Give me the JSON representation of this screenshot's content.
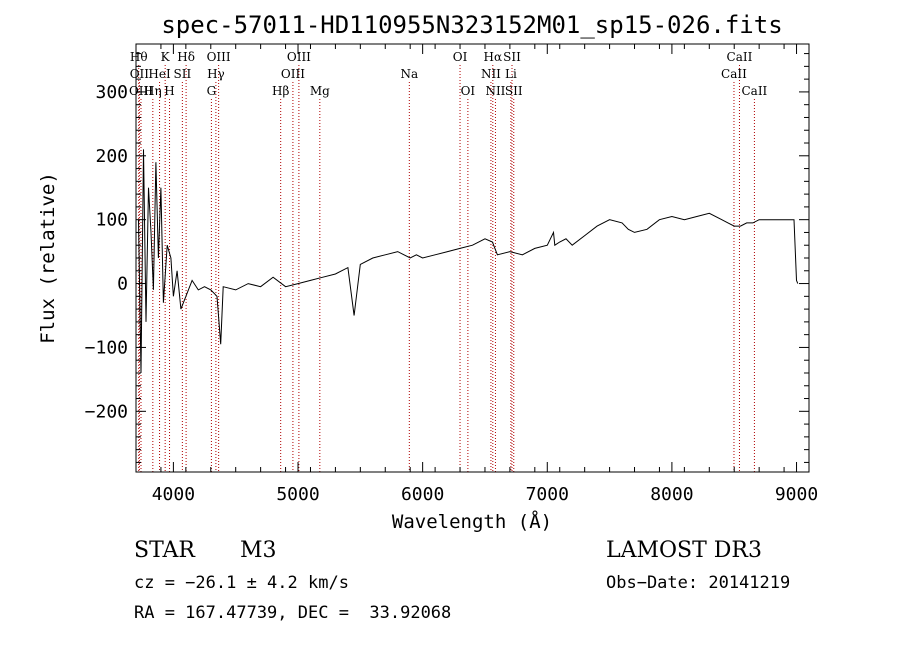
{
  "chart_data": {
    "type": "line",
    "title": "spec-57011-HD110955N323152M01_sp15-026.fits",
    "xlabel": "Wavelength (Å)",
    "ylabel": "Flux (relative)",
    "xlim": [
      3700,
      9100
    ],
    "ylim": [
      -295,
      375
    ],
    "xticks": [
      4000,
      5000,
      6000,
      7000,
      8000,
      9000
    ],
    "xtick_labels": [
      "4000",
      "5000",
      "6000",
      "7000",
      "8000",
      "9000"
    ],
    "yticks": [
      300,
      200,
      100,
      0,
      -100,
      -200
    ],
    "ytick_labels": [
      "300",
      "200",
      "100",
      "0",
      "−100",
      "−200"
    ],
    "series": [
      {
        "name": "flux",
        "x": [
          3720,
          3740,
          3760,
          3780,
          3800,
          3820,
          3840,
          3860,
          3880,
          3900,
          3920,
          3950,
          3980,
          4000,
          4030,
          4060,
          4100,
          4150,
          4200,
          4250,
          4300,
          4350,
          4380,
          4400,
          4500,
          4600,
          4700,
          4800,
          4900,
          5000,
          5100,
          5200,
          5300,
          5400,
          5450,
          5500,
          5600,
          5700,
          5800,
          5900,
          5950,
          6000,
          6100,
          6200,
          6300,
          6400,
          6500,
          6560,
          6600,
          6700,
          6800,
          6900,
          7000,
          7050,
          7060,
          7100,
          7150,
          7200,
          7300,
          7400,
          7500,
          7600,
          7650,
          7700,
          7800,
          7900,
          8000,
          8100,
          8200,
          8300,
          8400,
          8450,
          8500,
          8550,
          8600,
          8650,
          8700,
          8800,
          8900,
          8980,
          9000,
          9010
        ],
        "y": [
          100,
          -140,
          210,
          -60,
          150,
          80,
          -10,
          190,
          40,
          150,
          -30,
          60,
          40,
          -20,
          20,
          -40,
          -20,
          5,
          -10,
          -5,
          -10,
          -20,
          -95,
          -5,
          -10,
          0,
          -5,
          10,
          -5,
          0,
          5,
          10,
          15,
          25,
          -50,
          30,
          40,
          45,
          50,
          40,
          45,
          40,
          45,
          50,
          55,
          60,
          70,
          65,
          45,
          50,
          45,
          55,
          60,
          80,
          60,
          65,
          70,
          60,
          75,
          90,
          100,
          95,
          85,
          80,
          85,
          100,
          105,
          100,
          105,
          110,
          100,
          95,
          90,
          90,
          95,
          95,
          100,
          100,
          100,
          100,
          5,
          0
        ]
      }
    ],
    "spectral_lines": [
      {
        "label": "Hθ",
        "x": 3722,
        "row": 1
      },
      {
        "label": "OII",
        "x": 3727,
        "row": 2
      },
      {
        "label": "OIII",
        "x": 3740,
        "row": 3
      },
      {
        "label": "K",
        "x": 3934,
        "row": 1
      },
      {
        "label": "HeI",
        "x": 3889,
        "row": 2
      },
      {
        "label": "Hη",
        "x": 3835,
        "row": 3
      },
      {
        "label": "SII",
        "x": 4072,
        "row": 2
      },
      {
        "label": "Hδ",
        "x": 4102,
        "row": 1
      },
      {
        "label": "H",
        "x": 3969,
        "row": 3
      },
      {
        "label": "OIII",
        "x": 4363,
        "row": 1
      },
      {
        "label": "Hγ",
        "x": 4341,
        "row": 2
      },
      {
        "label": "G",
        "x": 4305,
        "row": 3
      },
      {
        "label": "Hβ",
        "x": 4861,
        "row": 3
      },
      {
        "label": "OIII",
        "x": 5007,
        "row": 1
      },
      {
        "label": "OIII",
        "x": 4959,
        "row": 2
      },
      {
        "label": "Mg",
        "x": 5175,
        "row": 3
      },
      {
        "label": "Na",
        "x": 5893,
        "row": 2
      },
      {
        "label": "OI",
        "x": 6300,
        "row": 1
      },
      {
        "label": "OI",
        "x": 6363,
        "row": 3
      },
      {
        "label": "Hα",
        "x": 6563,
        "row": 1
      },
      {
        "label": "NII",
        "x": 6548,
        "row": 2
      },
      {
        "label": "NII",
        "x": 6584,
        "row": 3
      },
      {
        "label": "SII",
        "x": 6717,
        "row": 1
      },
      {
        "label": "Li",
        "x": 6708,
        "row": 2
      },
      {
        "label": "SII",
        "x": 6731,
        "row": 3
      },
      {
        "label": "CaII",
        "x": 8542,
        "row": 1
      },
      {
        "label": "CaII",
        "x": 8498,
        "row": 2
      },
      {
        "label": "CaII",
        "x": 8662,
        "row": 3
      }
    ]
  },
  "info": {
    "object_class": "STAR",
    "subclass": "M3",
    "survey": "LAMOST DR3",
    "redshift": "cz = −26.1 ± 4.2 km/s",
    "obs_date": "Obs−Date: 20141219",
    "coords": "RA = 167.47739, DEC =  33.92068"
  },
  "colors": {
    "axis": "#000000",
    "spectrum": "#000000",
    "line_markers": "#b00000"
  }
}
